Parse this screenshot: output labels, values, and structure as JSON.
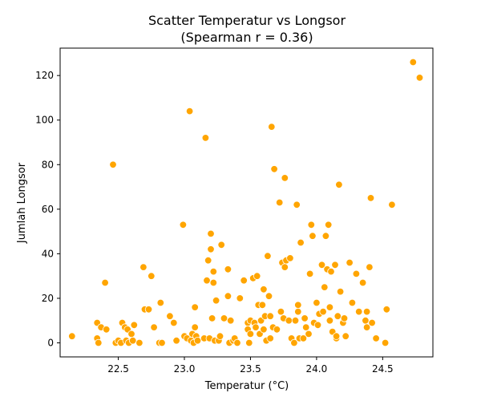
{
  "chart_data": {
    "type": "scatter",
    "title": "Scatter Temperatur vs Longsor",
    "subtitle": "(Spearman r = 0.36)",
    "xlabel": "Temperatur (°C)",
    "ylabel": "Jumlah Longsor",
    "xlim": [
      22.06,
      24.88
    ],
    "ylim": [
      -6.3,
      132.3
    ],
    "xticks": [
      22.5,
      23.0,
      23.5,
      24.0,
      24.5
    ],
    "xtick_labels": [
      "22.5",
      "23.0",
      "23.5",
      "24.0",
      "24.5"
    ],
    "yticks": [
      0,
      20,
      40,
      60,
      80,
      100,
      120
    ],
    "ytick_labels": [
      "0",
      "20",
      "40",
      "60",
      "80",
      "100",
      "120"
    ],
    "grid": false,
    "marker_color": "#FFA500",
    "points": [
      [
        22.15,
        3
      ],
      [
        22.34,
        9
      ],
      [
        22.34,
        2
      ],
      [
        22.35,
        0
      ],
      [
        22.37,
        7
      ],
      [
        22.4,
        27
      ],
      [
        22.41,
        6
      ],
      [
        22.46,
        80
      ],
      [
        22.48,
        0
      ],
      [
        22.5,
        1
      ],
      [
        22.52,
        0
      ],
      [
        22.53,
        9
      ],
      [
        22.55,
        7
      ],
      [
        22.56,
        1
      ],
      [
        22.57,
        6
      ],
      [
        22.58,
        0
      ],
      [
        22.6,
        4
      ],
      [
        22.61,
        1
      ],
      [
        22.62,
        8
      ],
      [
        22.66,
        0
      ],
      [
        22.69,
        34
      ],
      [
        22.7,
        15
      ],
      [
        22.73,
        15
      ],
      [
        22.75,
        30
      ],
      [
        22.77,
        7
      ],
      [
        22.81,
        0
      ],
      [
        22.82,
        18
      ],
      [
        22.83,
        0
      ],
      [
        22.89,
        12
      ],
      [
        22.92,
        9
      ],
      [
        22.94,
        1
      ],
      [
        22.99,
        53
      ],
      [
        23.0,
        3
      ],
      [
        23.02,
        2
      ],
      [
        23.04,
        104
      ],
      [
        23.05,
        1
      ],
      [
        23.06,
        4
      ],
      [
        23.07,
        0
      ],
      [
        23.08,
        16
      ],
      [
        23.08,
        7
      ],
      [
        23.09,
        3
      ],
      [
        23.1,
        1
      ],
      [
        23.15,
        2
      ],
      [
        23.16,
        92
      ],
      [
        23.17,
        28
      ],
      [
        23.18,
        37
      ],
      [
        23.19,
        2
      ],
      [
        23.2,
        42
      ],
      [
        23.2,
        49
      ],
      [
        23.21,
        11
      ],
      [
        23.22,
        32
      ],
      [
        23.22,
        27
      ],
      [
        23.23,
        1
      ],
      [
        23.24,
        19
      ],
      [
        23.26,
        1
      ],
      [
        23.27,
        3
      ],
      [
        23.28,
        44
      ],
      [
        23.3,
        11
      ],
      [
        23.33,
        33
      ],
      [
        23.33,
        21
      ],
      [
        23.34,
        0
      ],
      [
        23.35,
        10
      ],
      [
        23.37,
        1
      ],
      [
        23.38,
        2
      ],
      [
        23.4,
        0
      ],
      [
        23.42,
        20
      ],
      [
        23.45,
        28
      ],
      [
        23.48,
        9
      ],
      [
        23.48,
        6
      ],
      [
        23.49,
        0
      ],
      [
        23.5,
        4
      ],
      [
        23.5,
        10
      ],
      [
        23.52,
        29
      ],
      [
        23.53,
        9
      ],
      [
        23.54,
        7
      ],
      [
        23.55,
        30
      ],
      [
        23.56,
        17
      ],
      [
        23.57,
        4
      ],
      [
        23.58,
        10
      ],
      [
        23.59,
        17
      ],
      [
        23.6,
        6
      ],
      [
        23.6,
        24
      ],
      [
        23.61,
        12
      ],
      [
        23.62,
        1
      ],
      [
        23.63,
        39
      ],
      [
        23.64,
        21
      ],
      [
        23.65,
        2
      ],
      [
        23.65,
        12
      ],
      [
        23.66,
        97
      ],
      [
        23.67,
        7
      ],
      [
        23.68,
        78
      ],
      [
        23.7,
        6
      ],
      [
        23.72,
        63
      ],
      [
        23.73,
        14
      ],
      [
        23.74,
        36
      ],
      [
        23.75,
        11
      ],
      [
        23.76,
        74
      ],
      [
        23.76,
        34
      ],
      [
        23.77,
        37
      ],
      [
        23.79,
        10
      ],
      [
        23.8,
        38
      ],
      [
        23.81,
        2
      ],
      [
        23.83,
        0
      ],
      [
        23.84,
        10
      ],
      [
        23.85,
        62
      ],
      [
        23.86,
        17
      ],
      [
        23.86,
        14
      ],
      [
        23.87,
        2
      ],
      [
        23.88,
        45
      ],
      [
        23.9,
        2
      ],
      [
        23.91,
        11
      ],
      [
        23.92,
        7
      ],
      [
        23.94,
        4
      ],
      [
        23.95,
        31
      ],
      [
        23.96,
        53
      ],
      [
        23.97,
        48
      ],
      [
        23.98,
        9
      ],
      [
        24.0,
        18
      ],
      [
        24.01,
        8
      ],
      [
        24.02,
        13
      ],
      [
        24.04,
        35
      ],
      [
        24.05,
        14
      ],
      [
        24.06,
        25
      ],
      [
        24.07,
        48
      ],
      [
        24.08,
        33
      ],
      [
        24.09,
        53
      ],
      [
        24.1,
        16
      ],
      [
        24.1,
        10
      ],
      [
        24.11,
        32
      ],
      [
        24.12,
        5
      ],
      [
        24.14,
        35
      ],
      [
        24.15,
        2
      ],
      [
        24.15,
        3
      ],
      [
        24.16,
        12
      ],
      [
        24.17,
        71
      ],
      [
        24.18,
        23
      ],
      [
        24.2,
        9
      ],
      [
        24.21,
        11
      ],
      [
        24.22,
        3
      ],
      [
        24.25,
        36
      ],
      [
        24.27,
        18
      ],
      [
        24.3,
        31
      ],
      [
        24.32,
        14
      ],
      [
        24.35,
        27
      ],
      [
        24.37,
        10
      ],
      [
        24.38,
        14
      ],
      [
        24.38,
        7
      ],
      [
        24.4,
        34
      ],
      [
        24.41,
        65
      ],
      [
        24.42,
        9
      ],
      [
        24.45,
        2
      ],
      [
        24.52,
        0
      ],
      [
        24.53,
        15
      ],
      [
        24.57,
        62
      ],
      [
        24.73,
        126
      ],
      [
        24.78,
        119
      ]
    ]
  }
}
